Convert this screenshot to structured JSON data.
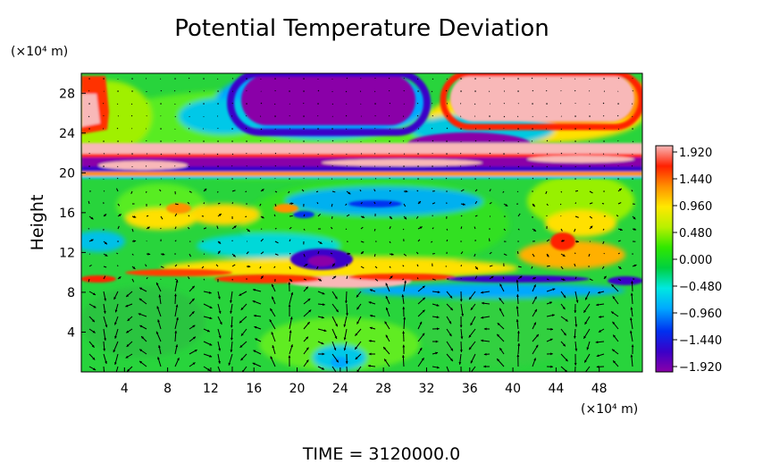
{
  "chart_data": {
    "type": "heatmap",
    "title": "Potential Temperature Deviation",
    "xlabel": "",
    "ylabel": "Height",
    "x_unit": "(×10⁴ m)",
    "y_unit": "(×10⁴ m)",
    "xlim": [
      0,
      52
    ],
    "ylim": [
      0,
      30
    ],
    "xticks": [
      "4",
      "8",
      "12",
      "16",
      "20",
      "24",
      "28",
      "32",
      "36",
      "40",
      "44",
      "48"
    ],
    "yticks": [
      "4",
      "8",
      "12",
      "16",
      "20",
      "24",
      "28"
    ],
    "colorbar": {
      "min": -1.92,
      "max": 1.92,
      "labels": [
        "1.920",
        "1.440",
        "0.960",
        "0.480",
        "0.000",
        "−0.480",
        "−0.960",
        "−1.440",
        "−1.920"
      ],
      "colors": [
        "#8a00a8",
        "#3a00c8",
        "#0030f0",
        "#00a8ff",
        "#00e8e0",
        "#00d040",
        "#30e800",
        "#b8f000",
        "#ffe800",
        "#ff9000",
        "#ff2000",
        "#f8b8b8"
      ]
    },
    "features": [
      {
        "x": [
          15,
          31
        ],
        "y": [
          25,
          30
        ],
        "value": -1.92
      },
      {
        "x": [
          34,
          52
        ],
        "y": [
          25,
          30
        ],
        "value": 1.92
      },
      {
        "x": [
          30,
          41
        ],
        "y": [
          20.5,
          23
        ],
        "value": -1.92
      },
      {
        "x": [
          0,
          52
        ],
        "y": [
          20,
          22
        ],
        "value": -1.92
      },
      {
        "x": [
          0,
          52
        ],
        "y": [
          22,
          23.5
        ],
        "value": 1.92
      },
      {
        "x": [
          0,
          2.5
        ],
        "y": [
          22.5,
          28
        ],
        "value": 1.6
      },
      {
        "x": [
          20,
          30
        ],
        "y": [
          9,
          10.5
        ],
        "value": 1.92
      },
      {
        "x": [
          19,
          26
        ],
        "y": [
          10,
          12.5
        ],
        "value": -1.4
      }
    ],
    "vector_field": "wind-arrows",
    "footer": "TIME = 3120000.0"
  }
}
